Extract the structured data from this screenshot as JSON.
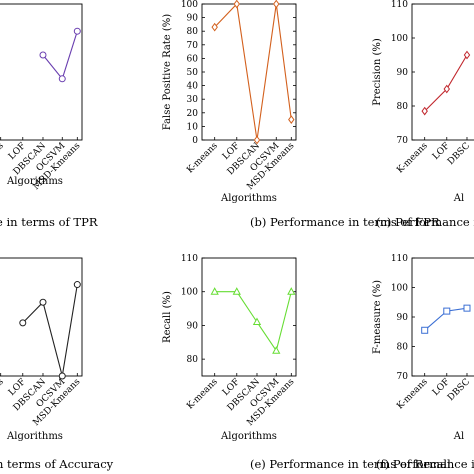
{
  "chart_data": [
    {
      "type": "line",
      "categories": [
        "K-means",
        "LOF",
        "DBSCAN",
        "OCSVM",
        "MSD-Kmeans"
      ],
      "series": [
        {
          "values": [
            null,
            null,
            92.5,
            89,
            96
          ]
        }
      ],
      "color": "#6a3fb0",
      "marker": "circle",
      "ylim": [
        80,
        100
      ],
      "yticks": [],
      "xlabel": "Algorithms",
      "ylabel": "",
      "caption": "e in terms of TPR"
    },
    {
      "type": "line",
      "categories": [
        "K-means",
        "LOF",
        "DBSCAN",
        "OCSVM",
        "MSD-Kmeans"
      ],
      "series": [
        {
          "values": [
            83,
            100,
            0,
            100,
            15
          ]
        }
      ],
      "color": "#d3601d",
      "marker": "diamond",
      "ylim": [
        0,
        100
      ],
      "yticks": [
        0,
        10,
        20,
        30,
        40,
        50,
        60,
        70,
        80,
        90,
        100
      ],
      "xlabel": "Algorithms",
      "ylabel": "False Positive Rate (%)",
      "caption": "(b) Performance in terms of FPR"
    },
    {
      "type": "line",
      "categories": [
        "K-means",
        "LOF",
        "DBSC"
      ],
      "series": [
        {
          "values": [
            78.5,
            85,
            95
          ]
        }
      ],
      "color": "#c1272d",
      "marker": "diamond",
      "ylim": [
        70,
        110
      ],
      "yticks": [
        70,
        80,
        90,
        100,
        110
      ],
      "xlabel": "Al",
      "ylabel": "Precision (%)",
      "caption": "(c) Performance in"
    },
    {
      "type": "line",
      "categories": [
        "K-means",
        "LOF",
        "DBSCAN",
        "OCSVM",
        "MSD-Kmeans"
      ],
      "series": [
        {
          "values": [
            null,
            89,
            92.5,
            80,
            95.5
          ]
        }
      ],
      "color": "#222222",
      "marker": "circle",
      "ylim": [
        80,
        100
      ],
      "yticks": [],
      "xlabel": "Algorithms",
      "ylabel": "",
      "caption": "n terms of Accuracy"
    },
    {
      "type": "line",
      "categories": [
        "K-means",
        "LOF",
        "DBSCAN",
        "OCSVM",
        "MSD-Kmeans"
      ],
      "series": [
        {
          "values": [
            100,
            100,
            91,
            82.5,
            100
          ]
        }
      ],
      "color": "#66dd33",
      "marker": "triangle",
      "ylim": [
        75,
        110
      ],
      "yticks": [
        80,
        90,
        100,
        110
      ],
      "xlabel": "Algorithms",
      "ylabel": "Recall (%)",
      "caption": "(e) Performance in terms of Recall"
    },
    {
      "type": "line",
      "categories": [
        "K-means",
        "LOF",
        "DBSC"
      ],
      "series": [
        {
          "values": [
            85.5,
            92,
            93
          ]
        }
      ],
      "color": "#3b6fd4",
      "marker": "square",
      "ylim": [
        70,
        110
      ],
      "yticks": [
        70,
        80,
        90,
        100,
        110
      ],
      "xlabel": "Al",
      "ylabel": "F-measure (%)",
      "caption": "(f) Performance in t"
    }
  ]
}
